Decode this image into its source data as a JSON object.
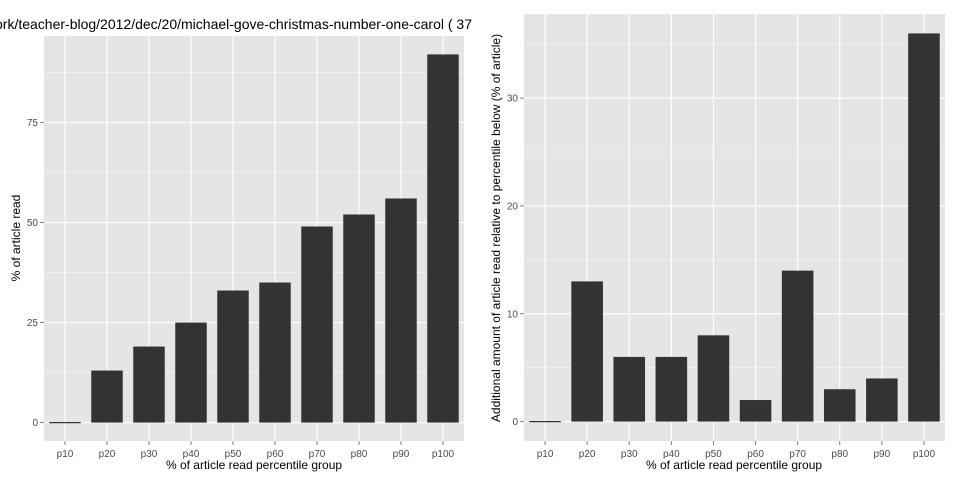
{
  "colors": {
    "panel_bg": "#e5e5e5",
    "grid_major": "#ffffff",
    "grid_minor": "#f2f2f2",
    "bar_fill": "#333333"
  },
  "chart_data": [
    {
      "type": "bar",
      "title": "ork/teacher-blog/2012/dec/20/michael-gove-christmas-number-one-carol ( 37",
      "xlabel": "% of article read percentile group",
      "ylabel": "% of article read",
      "categories": [
        "p10",
        "p20",
        "p30",
        "p40",
        "p50",
        "p60",
        "p70",
        "p80",
        "p90",
        "p100"
      ],
      "values": [
        0,
        13,
        19,
        25,
        33,
        35,
        49,
        52,
        56,
        92
      ],
      "ylim": [
        -4.6,
        96.6
      ],
      "yticks": [
        0,
        25,
        50,
        75
      ],
      "ytick_labels": [
        "0",
        "25",
        "50",
        "75"
      ]
    },
    {
      "type": "bar",
      "title": "",
      "xlabel": "% of article read percentile group",
      "ylabel": "Additional amount of article read relative to percentile below (% of article)",
      "categories": [
        "p10",
        "p20",
        "p30",
        "p40",
        "p50",
        "p60",
        "p70",
        "p80",
        "p90",
        "p100"
      ],
      "values": [
        0,
        13,
        6,
        6,
        8,
        2,
        14,
        3,
        4,
        36
      ],
      "ylim": [
        -1.8,
        37.8
      ],
      "yticks": [
        0,
        10,
        20,
        30
      ],
      "ytick_labels": [
        "0",
        "10",
        "20",
        "30"
      ]
    }
  ]
}
